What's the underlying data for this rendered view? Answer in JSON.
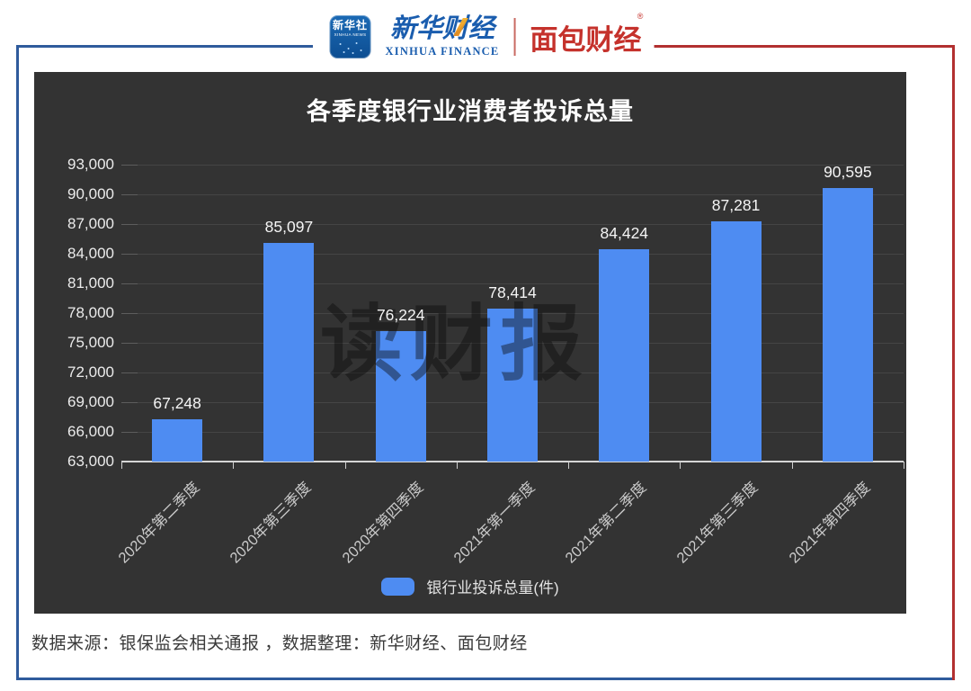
{
  "header": {
    "app_icon": {
      "line1": "新华社",
      "line2": "XINHUA NEWS"
    },
    "xinhua_finance": {
      "cn": "新华财经",
      "en": "XINHUA FINANCE"
    },
    "mianbao": {
      "cn": "面包财经",
      "reg": "®"
    }
  },
  "chart_data": {
    "type": "bar",
    "title": "各季度银行业消费者投诉总量",
    "categories": [
      "2020年第二季度",
      "2020年第三季度",
      "2020年第四季度",
      "2021年第一季度",
      "2021年第二季度",
      "2021年第三季度",
      "2021年第四季度"
    ],
    "values": [
      67248,
      85097,
      76224,
      78414,
      84424,
      87281,
      90595
    ],
    "value_labels": [
      "67,248",
      "85,097",
      "76,224",
      "78,414",
      "84,424",
      "87,281",
      "90,595"
    ],
    "ylim": [
      63000,
      93000
    ],
    "y_tick_step": 3000,
    "y_ticks": [
      "93,000",
      "90,000",
      "87,000",
      "84,000",
      "81,000",
      "78,000",
      "75,000",
      "72,000",
      "69,000",
      "66,000",
      "63,000"
    ],
    "grid": true,
    "legend": [
      {
        "label": "银行业投诉总量(件)",
        "color": "#4e8cf2"
      }
    ],
    "legend_position": "bottom-center",
    "bar_color": "#4e8cf2",
    "watermark": "读财报"
  },
  "footer": {
    "source": "数据来源：银保监会相关通报 ，数据整理：新华财经、面包财经"
  },
  "colors": {
    "panel_bg": "#333333",
    "gridline": "#454545",
    "axis": "#d6d6d6",
    "bar": "#4e8cf2",
    "border_blue": "#2f5b9c",
    "border_red": "#b23030",
    "xinhua_blue": "#1a5dae",
    "mianbao_red": "#c5322c"
  }
}
